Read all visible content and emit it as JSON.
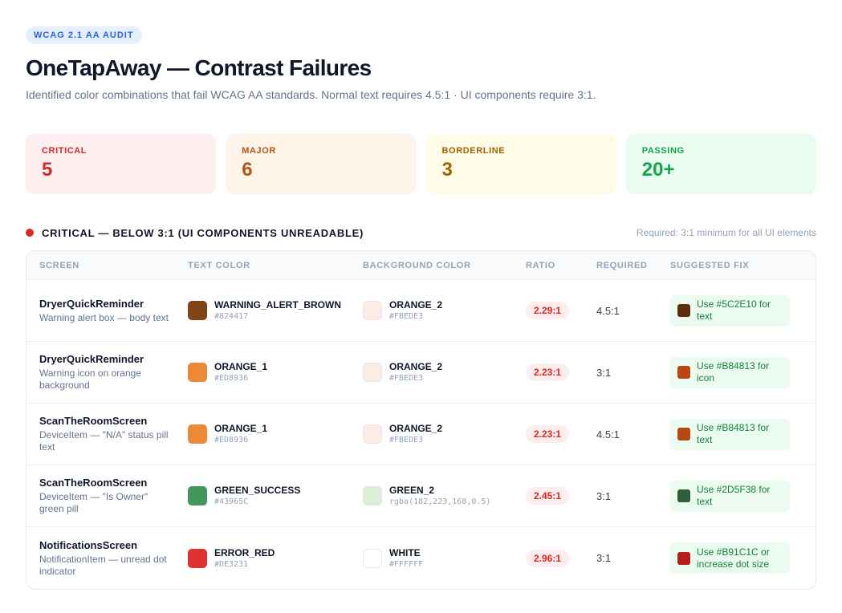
{
  "header": {
    "badge": "WCAG 2.1 AA AUDIT",
    "title": "OneTapAway — Contrast Failures",
    "subtitle": "Identified color combinations that fail WCAG AA standards. Normal text requires 4.5:1 · UI components require 3:1."
  },
  "stats": {
    "critical": {
      "label": "CRITICAL",
      "value": "5"
    },
    "major": {
      "label": "MAJOR",
      "value": "6"
    },
    "borderline": {
      "label": "BORDERLINE",
      "value": "3"
    },
    "passing": {
      "label": "PASSING",
      "value": "20+"
    }
  },
  "section": {
    "title": "CRITICAL — BELOW 3:1 (UI COMPONENTS UNREADABLE)",
    "note": "Required: 3:1 minimum for all UI elements",
    "dot_color": "#DC2626"
  },
  "table": {
    "headers": [
      "SCREEN",
      "TEXT COLOR",
      "BACKGROUND COLOR",
      "RATIO",
      "REQUIRED",
      "SUGGESTED FIX"
    ],
    "rows": [
      {
        "screen": "DryerQuickReminder",
        "desc": "Warning alert box — body text",
        "text_name": "WARNING_ALERT_BROWN",
        "text_hex": "#824417",
        "bg_name": "ORANGE_2",
        "bg_hex": "#FBEDE3",
        "ratio": "2.29:1",
        "required": "4.5:1",
        "fix": "Use #5C2E10 for text",
        "fix_color": "#5C2E10"
      },
      {
        "screen": "DryerQuickReminder",
        "desc": "Warning icon on orange background",
        "text_name": "ORANGE_1",
        "text_hex": "#ED8936",
        "bg_name": "ORANGE_2",
        "bg_hex": "#FBEDE3",
        "ratio": "2.23:1",
        "required": "3:1",
        "fix": "Use #B84813 for icon",
        "fix_color": "#B84813"
      },
      {
        "screen": "ScanTheRoomScreen",
        "desc": "DeviceItem — \"N/A\" status pill text",
        "text_name": "ORANGE_1",
        "text_hex": "#ED8936",
        "bg_name": "ORANGE_2",
        "bg_hex": "#FBEDE3",
        "ratio": "2.23:1",
        "required": "4.5:1",
        "fix": "Use #B84813 for text",
        "fix_color": "#B84813"
      },
      {
        "screen": "ScanTheRoomScreen",
        "desc": "DeviceItem — \"Is Owner\" green pill",
        "text_name": "GREEN_SUCCESS",
        "text_hex": "#43965C",
        "bg_name": "GREEN_2",
        "bg_hex": "rgba(182,223,168,0.5)",
        "ratio": "2.45:1",
        "required": "3:1",
        "fix": "Use #2D5F38 for text",
        "fix_color": "#2D5F38"
      },
      {
        "screen": "NotificationsScreen",
        "desc": "NotificationItem — unread dot indicator",
        "text_name": "ERROR_RED",
        "text_hex": "#DE3231",
        "bg_name": "WHITE",
        "bg_hex": "#FFFFFF",
        "ratio": "2.96:1",
        "required": "3:1",
        "fix": "Use #B91C1C or increase dot size",
        "fix_color": "#B91C1C"
      }
    ]
  }
}
